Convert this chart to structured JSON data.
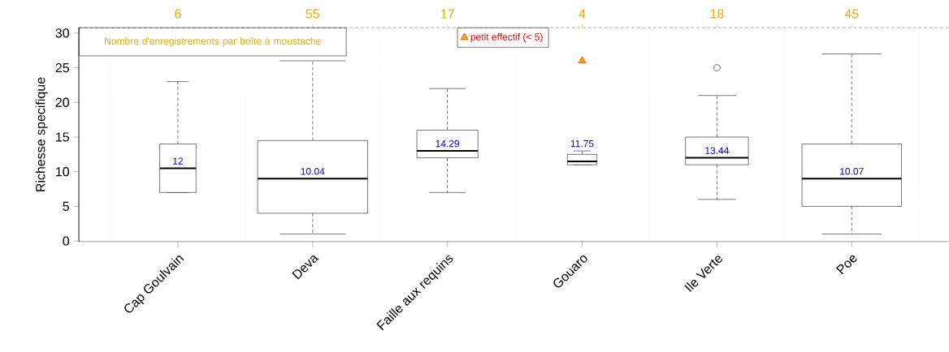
{
  "chart_data": {
    "type": "box",
    "ylabel": "Richesse specifique",
    "categories": [
      "Cap Goulvain",
      "Deva",
      "Faille aux requins",
      "Gouaro",
      "Ile Verte",
      "Poe"
    ],
    "boxes": [
      {
        "low": 7,
        "q1": 7,
        "median": 10.5,
        "q3": 14,
        "high": 23
      },
      {
        "low": 1,
        "q1": 4,
        "median": 9,
        "q3": 14.5,
        "high": 26
      },
      {
        "low": 7,
        "q1": 12,
        "median": 13,
        "q3": 16,
        "high": 22
      },
      {
        "low": 11,
        "q1": 11,
        "median": 11.5,
        "q3": 12.5,
        "high": 13
      },
      {
        "low": 6,
        "q1": 11,
        "median": 12,
        "q3": 15,
        "high": 21,
        "outliers": [
          25
        ]
      },
      {
        "low": 1,
        "q1": 5,
        "median": 9,
        "q3": 14,
        "high": 27
      }
    ],
    "value_labels": [
      "12",
      "10.04",
      "14.29",
      "11.75",
      "13.44",
      "10.07"
    ],
    "series": [
      {
        "name": "petit effectif (< 5)",
        "type": "scatter",
        "x": [
          "Gouaro"
        ],
        "values": [
          26
        ],
        "color": "#ffa500",
        "marker": "triangle"
      }
    ],
    "ylim": [
      -0.1,
      30.8
    ],
    "yticks": [
      0,
      5,
      10,
      15,
      20,
      25,
      30
    ],
    "grid": "x",
    "legend": "top",
    "annotations": [
      "Nombre d'enregistrements par boîte à moustache",
      "6",
      "55",
      "17",
      "4",
      "18",
      "45"
    ]
  }
}
